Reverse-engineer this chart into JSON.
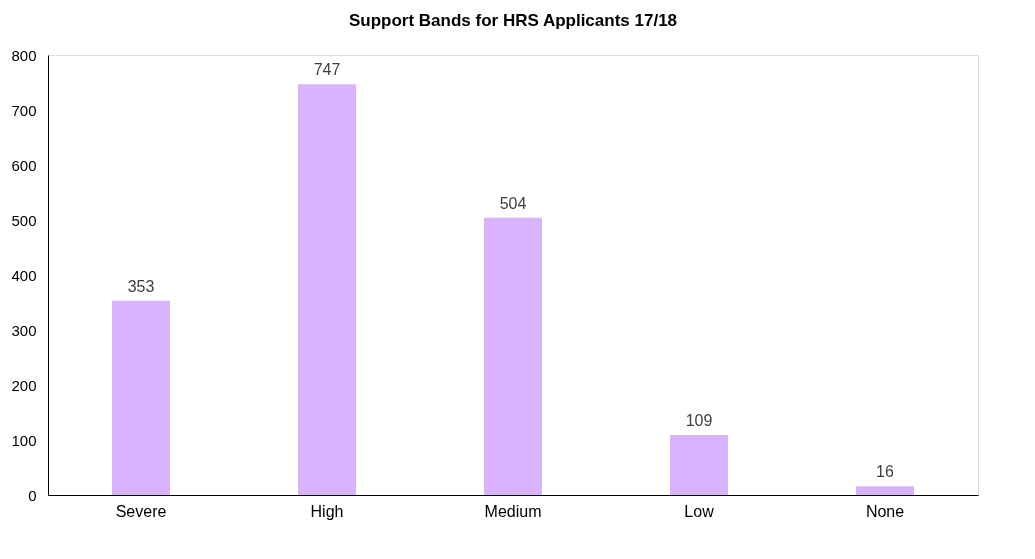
{
  "chart_data": {
    "type": "bar",
    "title": "Support Bands for HRS Applicants 17/18",
    "categories": [
      "Severe",
      "High",
      "Medium",
      "Low",
      "None"
    ],
    "values": [
      353,
      747,
      504,
      109,
      16
    ],
    "color": "#dab3ff",
    "ylim": [
      0,
      800
    ],
    "yticks": [
      0,
      100,
      200,
      300,
      400,
      500,
      600,
      700,
      800
    ],
    "data_labels": true,
    "grid": false
  }
}
